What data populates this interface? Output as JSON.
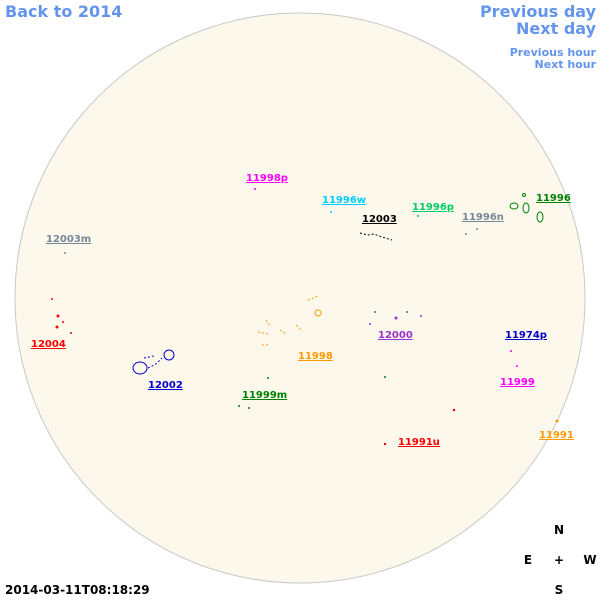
{
  "navigation": {
    "back": "Back to 2014",
    "previous_day": "Previous day",
    "next_day": "Next day",
    "previous_hour": "Previous hour",
    "next_hour": "Next hour"
  },
  "regions": [
    {
      "label": "11998p",
      "color": "#ff00ff"
    },
    {
      "label": "11996w",
      "color": "#00ccff"
    },
    {
      "label": "12003",
      "color": "#000000"
    },
    {
      "label": "11996p",
      "color": "#00cc66"
    },
    {
      "label": "11996n",
      "color": "#778899"
    },
    {
      "label": "11996",
      "color": "#008000"
    },
    {
      "label": "12003m",
      "color": "#778899"
    },
    {
      "label": "12004",
      "color": "#ff0000"
    },
    {
      "label": "12000",
      "color": "#9933cc"
    },
    {
      "label": "11974p",
      "color": "#0000cc"
    },
    {
      "label": "11998",
      "color": "#ff9900"
    },
    {
      "label": "12002",
      "color": "#0000cc"
    },
    {
      "label": "11999",
      "color": "#ff00ff"
    },
    {
      "label": "11999m",
      "color": "#008000"
    },
    {
      "label": "11991u",
      "color": "#ff0000"
    },
    {
      "label": "11991",
      "color": "#ff9900"
    }
  ],
  "compass": {
    "north": "N",
    "east": "E",
    "center": "+",
    "west": "W",
    "south": "S"
  },
  "timestamp": "2014-03-11T08:18:29"
}
